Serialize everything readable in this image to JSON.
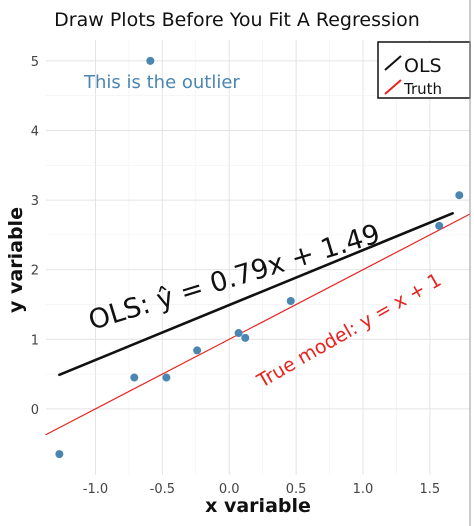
{
  "chart_data": {
    "type": "scatter",
    "title": "Draw Plots Before You Fit A Regression",
    "xlabel": "x variable",
    "ylabel": "y variable",
    "xlim": [
      -1.37,
      1.8
    ],
    "ylim": [
      -0.95,
      5.3
    ],
    "x_ticks": [
      -1.0,
      -0.5,
      0.0,
      0.5,
      1.0,
      1.5
    ],
    "x_tick_labels": [
      "-1.0",
      "-0.5",
      "0.0",
      "0.5",
      "1.0",
      "1.5"
    ],
    "y_ticks": [
      0,
      1,
      2,
      3,
      4,
      5
    ],
    "y_tick_labels": [
      "0",
      "1",
      "2",
      "3",
      "4",
      "5"
    ],
    "grid": true,
    "points": [
      {
        "x": -1.27,
        "y": -0.65
      },
      {
        "x": -0.71,
        "y": 0.45
      },
      {
        "x": -0.59,
        "y": 5.0
      },
      {
        "x": -0.47,
        "y": 0.45
      },
      {
        "x": -0.24,
        "y": 0.84
      },
      {
        "x": 0.07,
        "y": 1.09
      },
      {
        "x": 0.12,
        "y": 1.02
      },
      {
        "x": 0.46,
        "y": 1.55
      },
      {
        "x": 1.57,
        "y": 2.63
      },
      {
        "x": 1.72,
        "y": 3.07
      }
    ],
    "point_color": "#4a86b0",
    "lines": [
      {
        "name": "OLS",
        "color": "#111111",
        "x": [
          -1.27,
          1.67
        ],
        "y": [
          0.49,
          2.81
        ]
      },
      {
        "name": "Truth",
        "color": "#e8231f",
        "x": [
          -1.37,
          1.8
        ],
        "y": [
          -0.37,
          2.8
        ]
      }
    ],
    "legend": {
      "position": "top-right",
      "items": [
        {
          "label": "OLS",
          "color": "#111111"
        },
        {
          "label": "Truth",
          "color": "#e8231f"
        }
      ]
    },
    "annotations": {
      "outlier": "This is the outlier",
      "ols": "OLS: ŷ = 0.79x + 1.49",
      "truth": "True model: y = x + 1"
    }
  }
}
